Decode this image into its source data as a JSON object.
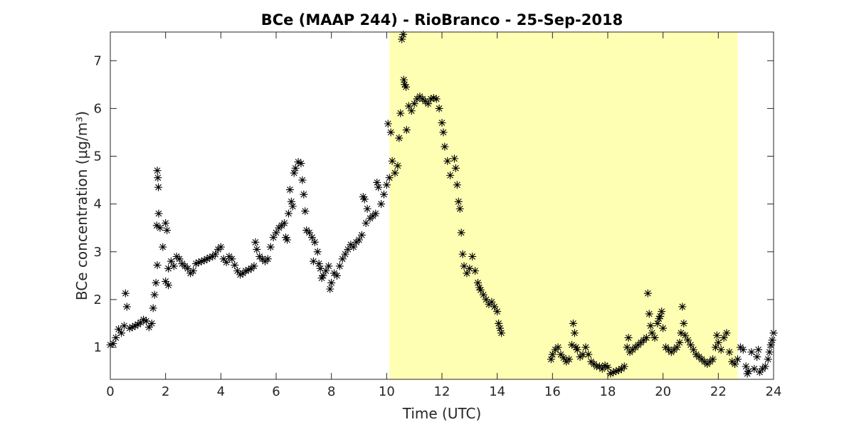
{
  "chart_data": {
    "type": "scatter",
    "title": "BCe (MAAP 244) - RioBranco - 25-Sep-2018",
    "xlabel": "Time (UTC)",
    "ylabel": "BCe concentration (μg/m³)",
    "xlim": [
      0,
      24
    ],
    "ylim": [
      0.33,
      7.6
    ],
    "xticks": [
      0,
      2,
      4,
      6,
      8,
      10,
      12,
      14,
      16,
      18,
      20,
      22,
      24
    ],
    "yticks": [
      1,
      2,
      3,
      4,
      5,
      6,
      7
    ],
    "grid": false,
    "marker": "asterisk",
    "highlight_region": {
      "x_start": 10.1,
      "x_end": 22.7,
      "color": "#ffffb3"
    },
    "series": [
      {
        "points": [
          [
            0.0,
            1.05
          ],
          [
            0.1,
            1.08
          ],
          [
            0.2,
            1.2
          ],
          [
            0.3,
            1.38
          ],
          [
            0.4,
            1.3
          ],
          [
            0.5,
            1.45
          ],
          [
            0.55,
            2.13
          ],
          [
            0.6,
            1.85
          ],
          [
            0.7,
            1.4
          ],
          [
            0.8,
            1.42
          ],
          [
            0.9,
            1.45
          ],
          [
            1.0,
            1.48
          ],
          [
            1.1,
            1.52
          ],
          [
            1.2,
            1.58
          ],
          [
            1.3,
            1.55
          ],
          [
            1.4,
            1.42
          ],
          [
            1.5,
            1.5
          ],
          [
            1.55,
            1.82
          ],
          [
            1.6,
            2.1
          ],
          [
            1.65,
            2.35
          ],
          [
            1.7,
            2.72
          ],
          [
            1.68,
            3.55
          ],
          [
            1.7,
            4.7
          ],
          [
            1.72,
            4.55
          ],
          [
            1.74,
            4.35
          ],
          [
            1.75,
            3.8
          ],
          [
            1.8,
            3.5
          ],
          [
            1.9,
            3.1
          ],
          [
            2.0,
            3.6
          ],
          [
            2.05,
            3.45
          ],
          [
            2.0,
            2.38
          ],
          [
            2.1,
            2.3
          ],
          [
            2.1,
            2.65
          ],
          [
            2.2,
            2.8
          ],
          [
            2.3,
            2.7
          ],
          [
            2.4,
            2.9
          ],
          [
            2.5,
            2.85
          ],
          [
            2.6,
            2.75
          ],
          [
            2.7,
            2.7
          ],
          [
            2.8,
            2.65
          ],
          [
            2.9,
            2.55
          ],
          [
            3.0,
            2.6
          ],
          [
            3.1,
            2.75
          ],
          [
            3.2,
            2.78
          ],
          [
            3.3,
            2.8
          ],
          [
            3.4,
            2.82
          ],
          [
            3.5,
            2.85
          ],
          [
            3.6,
            2.88
          ],
          [
            3.7,
            2.9
          ],
          [
            3.8,
            2.95
          ],
          [
            3.9,
            3.05
          ],
          [
            4.0,
            3.1
          ],
          [
            4.1,
            2.85
          ],
          [
            4.2,
            2.78
          ],
          [
            4.3,
            2.9
          ],
          [
            4.4,
            2.85
          ],
          [
            4.5,
            2.72
          ],
          [
            4.6,
            2.6
          ],
          [
            4.7,
            2.52
          ],
          [
            4.8,
            2.55
          ],
          [
            4.9,
            2.6
          ],
          [
            5.0,
            2.62
          ],
          [
            5.1,
            2.65
          ],
          [
            5.2,
            2.7
          ],
          [
            5.25,
            3.2
          ],
          [
            5.3,
            3.05
          ],
          [
            5.4,
            2.9
          ],
          [
            5.5,
            2.85
          ],
          [
            5.6,
            2.8
          ],
          [
            5.7,
            2.85
          ],
          [
            5.8,
            3.1
          ],
          [
            5.9,
            3.3
          ],
          [
            6.0,
            3.4
          ],
          [
            6.1,
            3.5
          ],
          [
            6.2,
            3.55
          ],
          [
            6.3,
            3.6
          ],
          [
            6.35,
            3.3
          ],
          [
            6.4,
            3.25
          ],
          [
            6.45,
            3.8
          ],
          [
            6.5,
            4.3
          ],
          [
            6.55,
            4.05
          ],
          [
            6.6,
            3.95
          ],
          [
            6.65,
            4.65
          ],
          [
            6.7,
            4.75
          ],
          [
            6.8,
            4.88
          ],
          [
            6.9,
            4.85
          ],
          [
            6.95,
            4.5
          ],
          [
            7.0,
            4.2
          ],
          [
            7.05,
            3.85
          ],
          [
            7.1,
            3.45
          ],
          [
            7.2,
            3.4
          ],
          [
            7.3,
            3.3
          ],
          [
            7.35,
            2.8
          ],
          [
            7.4,
            3.2
          ],
          [
            7.5,
            3.0
          ],
          [
            7.55,
            2.75
          ],
          [
            7.6,
            2.65
          ],
          [
            7.65,
            2.45
          ],
          [
            7.7,
            2.5
          ],
          [
            7.8,
            2.6
          ],
          [
            7.9,
            2.7
          ],
          [
            7.95,
            2.22
          ],
          [
            8.0,
            2.35
          ],
          [
            8.1,
            2.55
          ],
          [
            8.2,
            2.5
          ],
          [
            8.3,
            2.7
          ],
          [
            8.4,
            2.85
          ],
          [
            8.5,
            2.95
          ],
          [
            8.6,
            3.05
          ],
          [
            8.7,
            3.15
          ],
          [
            8.8,
            3.1
          ],
          [
            8.9,
            3.2
          ],
          [
            9.0,
            3.25
          ],
          [
            9.1,
            3.35
          ],
          [
            9.15,
            4.15
          ],
          [
            9.2,
            4.1
          ],
          [
            9.25,
            3.6
          ],
          [
            9.3,
            3.9
          ],
          [
            9.4,
            3.7
          ],
          [
            9.5,
            3.75
          ],
          [
            9.6,
            3.8
          ],
          [
            9.65,
            4.45
          ],
          [
            9.7,
            4.35
          ],
          [
            9.8,
            4.0
          ],
          [
            9.9,
            4.2
          ],
          [
            10.0,
            4.4
          ],
          [
            10.05,
            5.68
          ],
          [
            10.1,
            4.55
          ],
          [
            10.15,
            5.5
          ],
          [
            10.2,
            4.9
          ],
          [
            10.3,
            4.65
          ],
          [
            10.4,
            4.8
          ],
          [
            10.45,
            5.38
          ],
          [
            10.5,
            5.9
          ],
          [
            10.55,
            7.45
          ],
          [
            10.6,
            7.55
          ],
          [
            10.62,
            6.6
          ],
          [
            10.65,
            6.5
          ],
          [
            10.7,
            6.45
          ],
          [
            10.72,
            5.55
          ],
          [
            10.8,
            6.05
          ],
          [
            10.9,
            5.95
          ],
          [
            11.0,
            6.1
          ],
          [
            11.1,
            6.2
          ],
          [
            11.2,
            6.25
          ],
          [
            11.3,
            6.2
          ],
          [
            11.4,
            6.15
          ],
          [
            11.5,
            6.1
          ],
          [
            11.6,
            6.2
          ],
          [
            11.7,
            6.22
          ],
          [
            11.8,
            6.2
          ],
          [
            11.9,
            6.0
          ],
          [
            12.0,
            5.7
          ],
          [
            12.05,
            5.5
          ],
          [
            12.1,
            5.2
          ],
          [
            12.2,
            4.9
          ],
          [
            12.3,
            4.6
          ],
          [
            12.45,
            4.95
          ],
          [
            12.5,
            4.75
          ],
          [
            12.55,
            4.4
          ],
          [
            12.6,
            4.05
          ],
          [
            12.65,
            3.9
          ],
          [
            12.7,
            3.4
          ],
          [
            12.75,
            2.95
          ],
          [
            12.8,
            2.7
          ],
          [
            12.9,
            2.55
          ],
          [
            13.0,
            2.65
          ],
          [
            13.1,
            2.9
          ],
          [
            13.2,
            2.6
          ],
          [
            13.3,
            2.35
          ],
          [
            13.35,
            2.25
          ],
          [
            13.4,
            2.2
          ],
          [
            13.5,
            2.1
          ],
          [
            13.6,
            2.0
          ],
          [
            13.7,
            1.9
          ],
          [
            13.8,
            1.95
          ],
          [
            13.9,
            1.85
          ],
          [
            14.0,
            1.75
          ],
          [
            14.05,
            1.5
          ],
          [
            14.1,
            1.4
          ],
          [
            14.15,
            1.3
          ],
          [
            15.95,
            0.75
          ],
          [
            16.0,
            0.85
          ],
          [
            16.1,
            0.95
          ],
          [
            16.2,
            1.0
          ],
          [
            16.3,
            0.85
          ],
          [
            16.4,
            0.78
          ],
          [
            16.5,
            0.7
          ],
          [
            16.6,
            0.75
          ],
          [
            16.7,
            1.05
          ],
          [
            16.75,
            1.5
          ],
          [
            16.8,
            1.3
          ],
          [
            16.85,
            1.0
          ],
          [
            16.9,
            0.95
          ],
          [
            17.0,
            0.8
          ],
          [
            17.1,
            0.85
          ],
          [
            17.2,
            1.0
          ],
          [
            17.3,
            0.85
          ],
          [
            17.4,
            0.7
          ],
          [
            17.5,
            0.65
          ],
          [
            17.6,
            0.6
          ],
          [
            17.7,
            0.6
          ],
          [
            17.8,
            0.55
          ],
          [
            17.9,
            0.62
          ],
          [
            18.0,
            0.58
          ],
          [
            18.1,
            0.45
          ],
          [
            18.2,
            0.48
          ],
          [
            18.3,
            0.5
          ],
          [
            18.4,
            0.52
          ],
          [
            18.5,
            0.55
          ],
          [
            18.6,
            0.6
          ],
          [
            18.7,
            1.0
          ],
          [
            18.75,
            1.2
          ],
          [
            18.8,
            0.9
          ],
          [
            18.9,
            0.95
          ],
          [
            19.0,
            1.0
          ],
          [
            19.1,
            1.05
          ],
          [
            19.2,
            1.1
          ],
          [
            19.3,
            1.15
          ],
          [
            19.4,
            1.2
          ],
          [
            19.45,
            2.13
          ],
          [
            19.5,
            1.7
          ],
          [
            19.55,
            1.45
          ],
          [
            19.6,
            1.3
          ],
          [
            19.7,
            1.2
          ],
          [
            19.8,
            1.5
          ],
          [
            19.85,
            1.6
          ],
          [
            19.9,
            1.65
          ],
          [
            19.95,
            1.75
          ],
          [
            20.0,
            1.4
          ],
          [
            20.1,
            1.0
          ],
          [
            20.2,
            0.95
          ],
          [
            20.3,
            0.9
          ],
          [
            20.4,
            0.95
          ],
          [
            20.5,
            1.0
          ],
          [
            20.6,
            1.1
          ],
          [
            20.65,
            1.3
          ],
          [
            20.7,
            1.85
          ],
          [
            20.75,
            1.5
          ],
          [
            20.8,
            1.25
          ],
          [
            20.9,
            1.15
          ],
          [
            21.0,
            1.05
          ],
          [
            21.1,
            0.95
          ],
          [
            21.2,
            0.85
          ],
          [
            21.3,
            0.8
          ],
          [
            21.4,
            0.75
          ],
          [
            21.5,
            0.7
          ],
          [
            21.6,
            0.65
          ],
          [
            21.7,
            0.7
          ],
          [
            21.8,
            0.75
          ],
          [
            21.9,
            1.0
          ],
          [
            21.95,
            1.25
          ],
          [
            22.0,
            1.1
          ],
          [
            22.1,
            0.95
          ],
          [
            22.2,
            1.2
          ],
          [
            22.3,
            1.3
          ],
          [
            22.4,
            0.9
          ],
          [
            22.5,
            0.7
          ],
          [
            22.6,
            0.65
          ],
          [
            22.7,
            0.75
          ],
          [
            22.8,
            1.0
          ],
          [
            22.9,
            0.95
          ],
          [
            23.0,
            0.6
          ],
          [
            23.05,
            0.45
          ],
          [
            23.1,
            0.5
          ],
          [
            23.2,
            0.9
          ],
          [
            23.3,
            0.55
          ],
          [
            23.4,
            0.8
          ],
          [
            23.45,
            0.95
          ],
          [
            23.5,
            0.48
          ],
          [
            23.6,
            0.55
          ],
          [
            23.7,
            0.6
          ],
          [
            23.8,
            0.75
          ],
          [
            23.85,
            0.9
          ],
          [
            23.9,
            1.05
          ],
          [
            23.95,
            1.15
          ],
          [
            24.0,
            1.3
          ]
        ]
      }
    ]
  }
}
